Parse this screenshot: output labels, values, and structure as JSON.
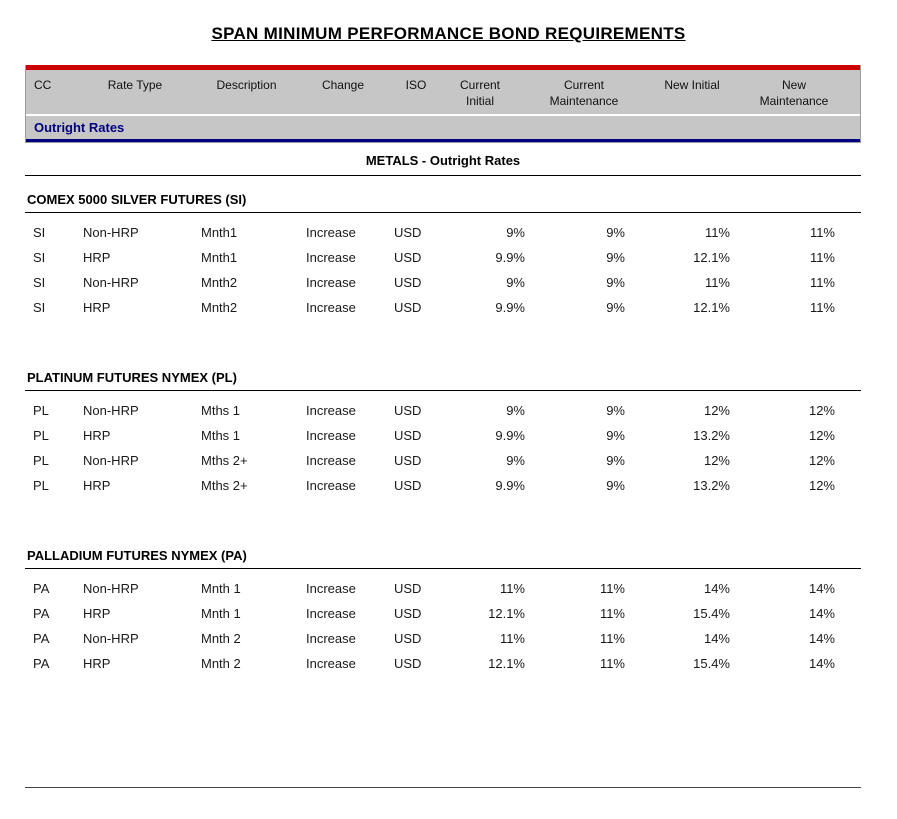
{
  "title": "SPAN MINIMUM PERFORMANCE BOND REQUIREMENTS",
  "header": {
    "columns": [
      "CC",
      "Rate Type",
      "Description",
      "Change",
      "ISO",
      "Current Initial",
      "Current Maintenance",
      "New Initial",
      "New Maintenance"
    ],
    "column_keys": [
      "cc",
      "rate-type",
      "description",
      "change",
      "iso",
      "current-initial",
      "current-maintenance",
      "new-initial",
      "new-maintenance"
    ],
    "subheader": "Outright Rates"
  },
  "banner": "METALS - Outright Rates",
  "colors": {
    "accent_red": "#cc0000",
    "header_gray": "#c6c6c6",
    "navy": "#000080"
  },
  "groups": [
    {
      "title": "COMEX 5000 SILVER FUTURES (SI)",
      "rows": [
        [
          "SI",
          "Non-HRP",
          "Mnth1",
          "Increase",
          "USD",
          "9%",
          "9%",
          "11%",
          "11%"
        ],
        [
          "SI",
          "HRP",
          "Mnth1",
          "Increase",
          "USD",
          "9.9%",
          "9%",
          "12.1%",
          "11%"
        ],
        [
          "SI",
          "Non-HRP",
          "Mnth2",
          "Increase",
          "USD",
          "9%",
          "9%",
          "11%",
          "11%"
        ],
        [
          "SI",
          "HRP",
          "Mnth2",
          "Increase",
          "USD",
          "9.9%",
          "9%",
          "12.1%",
          "11%"
        ]
      ]
    },
    {
      "title": "PLATINUM FUTURES NYMEX (PL)",
      "rows": [
        [
          "PL",
          "Non-HRP",
          "Mths 1",
          "Increase",
          "USD",
          "9%",
          "9%",
          "12%",
          "12%"
        ],
        [
          "PL",
          "HRP",
          "Mths 1",
          "Increase",
          "USD",
          "9.9%",
          "9%",
          "13.2%",
          "12%"
        ],
        [
          "PL",
          "Non-HRP",
          "Mths 2+",
          "Increase",
          "USD",
          "9%",
          "9%",
          "12%",
          "12%"
        ],
        [
          "PL",
          "HRP",
          "Mths 2+",
          "Increase",
          "USD",
          "9.9%",
          "9%",
          "13.2%",
          "12%"
        ]
      ]
    },
    {
      "title": "PALLADIUM FUTURES NYMEX (PA)",
      "rows": [
        [
          "PA",
          "Non-HRP",
          "Mnth 1",
          "Increase",
          "USD",
          "11%",
          "11%",
          "14%",
          "14%"
        ],
        [
          "PA",
          "HRP",
          "Mnth 1",
          "Increase",
          "USD",
          "12.1%",
          "11%",
          "15.4%",
          "14%"
        ],
        [
          "PA",
          "Non-HRP",
          "Mnth 2",
          "Increase",
          "USD",
          "11%",
          "11%",
          "14%",
          "14%"
        ],
        [
          "PA",
          "HRP",
          "Mnth 2",
          "Increase",
          "USD",
          "12.1%",
          "11%",
          "15.4%",
          "14%"
        ]
      ]
    }
  ]
}
